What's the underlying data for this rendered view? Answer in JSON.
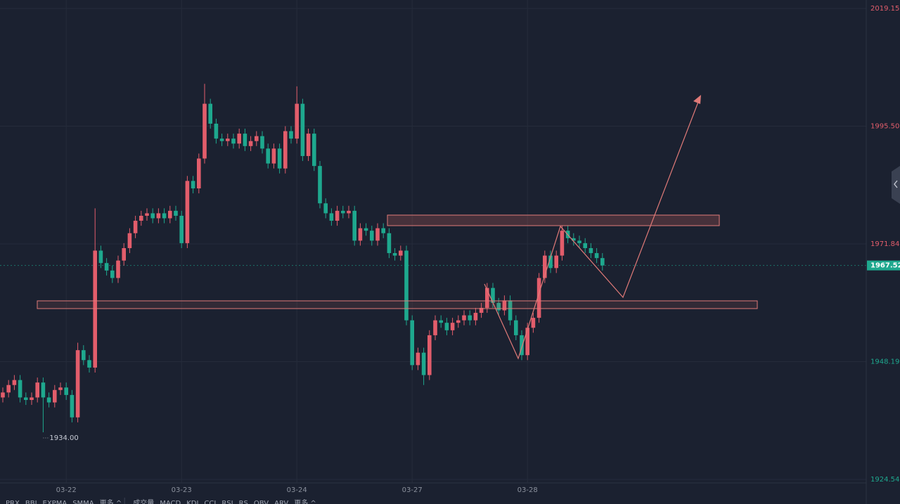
{
  "chart_data": {
    "type": "candlestick",
    "up_color": "#e25d6b",
    "down_color": "#1ea88e",
    "grid": true,
    "ylim": [
      1924.54,
      2019.15
    ],
    "yticks": [
      2019.15,
      {
        "value": 1995.5,
        "label": "1995.50"
      },
      1971.84,
      1948.19,
      1924.54
    ],
    "xticks": [
      {
        "value": 11,
        "label": "03-22"
      },
      {
        "value": 31,
        "label": "03-23"
      },
      {
        "value": 51,
        "label": "03-24"
      },
      {
        "value": 71,
        "label": "03-27"
      },
      {
        "value": 91,
        "label": "03-28"
      }
    ],
    "last_price": 1967.52,
    "low_label": {
      "value": 1934,
      "label": "1934.00"
    },
    "open": [
      1941.0,
      1942.0,
      1943.5,
      1944.5,
      1941.0,
      1940.5,
      1941.0,
      1944.0,
      1941.0,
      1940.0,
      1942.5,
      1943.0,
      1941.5,
      1937.0,
      1950.5,
      1948.5,
      1947.0,
      1970.5,
      1968.0,
      1966.5,
      1965.0,
      1968.5,
      1971.0,
      1974.0,
      1976.5,
      1977.5,
      1978.0,
      1977.0,
      1978.0,
      1977.0,
      1978.5,
      1977.5,
      1972.0,
      1984.5,
      1983.0,
      1989.0,
      2000.0,
      1996.0,
      1993.0,
      1992.5,
      1993.0,
      1992.0,
      1994.0,
      1991.5,
      1992.5,
      1993.5,
      1991.0,
      1988.0,
      1991.0,
      1987.0,
      1994.5,
      1993.0,
      2000.0,
      1989.5,
      1994.0,
      1987.5,
      1980.0,
      1978.0,
      1976.5,
      1978.5,
      1978.0,
      1978.5,
      1972.5,
      1975.0,
      1974.5,
      1972.5,
      1975.0,
      1974.0,
      1970.0,
      1969.5,
      1970.5,
      1956.5,
      1947.5,
      1950.0,
      1945.5,
      1953.5,
      1956.5,
      1956.0,
      1954.5,
      1956.0,
      1956.5,
      1957.5,
      1956.5,
      1958.0,
      1959.0,
      1963.0,
      1960.0,
      1958.5,
      1960.5,
      1956.5,
      1953.5,
      1949.5,
      1955.0,
      1957.0,
      1965.0,
      1969.5,
      1967.0,
      1969.5,
      1974.5,
      1973.0,
      1972.5,
      1972.0,
      1971.0,
      1970.0,
      1969.0
    ],
    "high": [
      1943.0,
      1944.5,
      1945.5,
      1945.5,
      1942.0,
      1942.0,
      1945.0,
      1945.0,
      1942.0,
      1943.5,
      1944.0,
      1944.0,
      1942.5,
      1952.0,
      1951.5,
      1949.5,
      1979.0,
      1971.5,
      1969.0,
      1967.5,
      1969.5,
      1972.0,
      1975.0,
      1977.5,
      1978.5,
      1979.0,
      1979.0,
      1979.0,
      1979.0,
      1979.5,
      1979.5,
      1978.5,
      1985.5,
      1985.5,
      1990.0,
      2004.0,
      2001.0,
      1997.0,
      1994.0,
      1994.0,
      1994.0,
      1995.0,
      1995.0,
      1993.5,
      1994.5,
      1994.5,
      1992.0,
      1992.0,
      1992.0,
      1995.5,
      1995.5,
      2003.5,
      2001.0,
      1995.0,
      1995.0,
      1988.5,
      1981.0,
      1979.0,
      1979.5,
      1979.5,
      1979.5,
      1979.5,
      1976.0,
      1976.0,
      1975.5,
      1976.0,
      1976.0,
      1975.0,
      1971.0,
      1971.5,
      1971.5,
      1957.5,
      1951.0,
      1951.0,
      1954.5,
      1957.5,
      1957.5,
      1957.0,
      1957.0,
      1957.5,
      1958.5,
      1958.5,
      1959.0,
      1960.0,
      1964.0,
      1964.0,
      1961.0,
      1961.5,
      1961.5,
      1957.5,
      1954.5,
      1956.0,
      1958.0,
      1966.0,
      1970.5,
      1970.5,
      1970.5,
      1975.5,
      1975.5,
      1974.0,
      1973.5,
      1973.0,
      1972.0,
      1971.0,
      1970.0
    ],
    "low": [
      1940.0,
      1941.0,
      1942.5,
      1940.0,
      1939.5,
      1939.5,
      1940.0,
      1934.0,
      1939.0,
      1939.0,
      1941.5,
      1940.5,
      1936.0,
      1936.0,
      1947.5,
      1946.0,
      1946.0,
      1967.0,
      1965.5,
      1964.0,
      1964.0,
      1967.5,
      1970.0,
      1973.0,
      1975.5,
      1976.5,
      1976.0,
      1976.0,
      1976.0,
      1976.0,
      1976.5,
      1971.0,
      1971.0,
      1982.0,
      1982.0,
      1988.0,
      1995.0,
      1992.0,
      1991.5,
      1991.5,
      1991.0,
      1991.0,
      1990.5,
      1990.5,
      1991.5,
      1990.0,
      1987.0,
      1987.0,
      1986.0,
      1986.0,
      1992.0,
      1992.0,
      1988.5,
      1988.5,
      1986.5,
      1979.0,
      1977.0,
      1975.5,
      1975.5,
      1977.0,
      1977.0,
      1971.5,
      1971.5,
      1973.5,
      1971.5,
      1971.5,
      1973.0,
      1969.0,
      1968.5,
      1968.5,
      1955.5,
      1946.5,
      1946.5,
      1943.5,
      1944.5,
      1952.5,
      1955.0,
      1953.5,
      1953.5,
      1955.0,
      1955.5,
      1955.5,
      1955.5,
      1957.0,
      1958.0,
      1959.0,
      1957.5,
      1957.5,
      1955.5,
      1952.5,
      1948.5,
      1948.5,
      1954.0,
      1956.0,
      1964.0,
      1966.0,
      1966.0,
      1968.5,
      1972.0,
      1971.5,
      1971.0,
      1970.0,
      1969.0,
      1968.0,
      1966.5
    ],
    "close": [
      1942.0,
      1943.5,
      1944.5,
      1941.0,
      1940.5,
      1941.0,
      1944.0,
      1941.0,
      1940.0,
      1942.5,
      1943.0,
      1941.5,
      1937.0,
      1950.5,
      1948.5,
      1947.0,
      1970.5,
      1968.0,
      1966.5,
      1965.0,
      1968.5,
      1971.0,
      1974.0,
      1976.5,
      1977.5,
      1978.0,
      1977.0,
      1978.0,
      1977.0,
      1978.5,
      1977.5,
      1972.0,
      1984.5,
      1983.0,
      1989.0,
      2000.0,
      1996.0,
      1993.0,
      1992.5,
      1993.0,
      1992.0,
      1994.0,
      1991.5,
      1992.5,
      1993.5,
      1991.0,
      1988.0,
      1991.0,
      1987.0,
      1994.5,
      1993.0,
      2000.0,
      1989.5,
      1994.0,
      1987.5,
      1980.0,
      1978.0,
      1976.5,
      1978.5,
      1978.0,
      1978.5,
      1972.5,
      1975.0,
      1974.5,
      1972.5,
      1975.0,
      1974.0,
      1970.0,
      1969.5,
      1970.5,
      1956.5,
      1947.5,
      1950.0,
      1945.5,
      1953.5,
      1956.5,
      1956.0,
      1954.5,
      1956.0,
      1956.5,
      1957.5,
      1956.5,
      1958.0,
      1959.0,
      1963.0,
      1960.0,
      1958.5,
      1960.5,
      1956.5,
      1953.5,
      1949.5,
      1955.0,
      1957.0,
      1965.0,
      1969.5,
      1967.0,
      1969.5,
      1974.5,
      1973.0,
      1972.5,
      1972.0,
      1971.0,
      1970.0,
      1969.0,
      1967.52
    ]
  },
  "toolbar": {
    "main_indicators": [
      "PRX",
      "BBI",
      "EXPMA",
      "SMMA",
      "更多 ^"
    ],
    "sub_indicators": [
      "成交量",
      "MACD",
      "KDJ",
      "CCI",
      "RSI",
      "RS",
      "OBV",
      "ARV",
      "更多 ^"
    ]
  }
}
